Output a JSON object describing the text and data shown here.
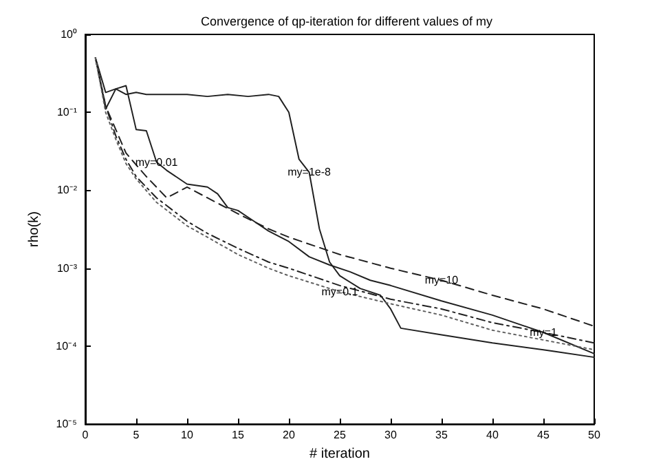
{
  "chart_data": {
    "type": "line",
    "title": "Convergence of qp-iteration for different values of my",
    "xlabel": "# iteration",
    "ylabel": "rho(k)",
    "log": "y",
    "grid": false,
    "marker": "none",
    "xlim": [
      0,
      50
    ],
    "xticks": [
      0,
      5,
      10,
      15,
      20,
      25,
      30,
      35,
      40,
      45,
      50
    ],
    "ylim": [
      1e-05,
      1
    ],
    "yticks": [
      {
        "value": 1e-05,
        "label": "10⁻⁵"
      },
      {
        "value": 0.0001,
        "label": "10⁻⁴"
      },
      {
        "value": 0.001,
        "label": "10⁻³"
      },
      {
        "value": 0.01,
        "label": "10⁻²"
      },
      {
        "value": 0.1,
        "label": "10⁻¹"
      },
      {
        "value": 1,
        "label": "10⁰"
      }
    ],
    "series": [
      {
        "color": "#202020",
        "line_style": "solid",
        "x": [
          1,
          2,
          3,
          4,
          5,
          6,
          8,
          10,
          12,
          14,
          16,
          18,
          19,
          20,
          21,
          22,
          23,
          24,
          25,
          27,
          29,
          30,
          31,
          35,
          40,
          45,
          50
        ],
        "values": [
          0.5,
          0.18,
          0.2,
          0.17,
          0.18,
          0.17,
          0.17,
          0.17,
          0.16,
          0.17,
          0.16,
          0.17,
          0.16,
          0.1,
          0.025,
          0.017,
          0.0032,
          0.0012,
          0.0008,
          0.00055,
          0.00045,
          0.0003,
          0.00017,
          0.00014,
          0.00011,
          9e-05,
          7.2e-05
        ]
      },
      {
        "color": "#202020",
        "line_style": "solid",
        "x": [
          1,
          2,
          3,
          4,
          5,
          6,
          7,
          8,
          10,
          12,
          13,
          14,
          15,
          16,
          18,
          20,
          22,
          24,
          26,
          28,
          30,
          35,
          40,
          45,
          50
        ],
        "values": [
          0.5,
          0.11,
          0.2,
          0.22,
          0.06,
          0.058,
          0.023,
          0.018,
          0.012,
          0.011,
          0.009,
          0.006,
          0.0055,
          0.0045,
          0.003,
          0.0022,
          0.0014,
          0.0011,
          0.0009,
          0.0007,
          0.0006,
          0.00038,
          0.00025,
          0.00015,
          8e-05
        ]
      },
      {
        "color": "#202020",
        "line_style": "dashed",
        "x": [
          1,
          2,
          3,
          4,
          6,
          8,
          10,
          12,
          15,
          18,
          20,
          25,
          30,
          35,
          40,
          45,
          50
        ],
        "values": [
          0.5,
          0.12,
          0.06,
          0.03,
          0.015,
          0.008,
          0.011,
          0.008,
          0.005,
          0.0032,
          0.0025,
          0.0015,
          0.001,
          0.0007,
          0.00045,
          0.0003,
          0.00018
        ]
      },
      {
        "color": "#202020",
        "line_style": "dashdot",
        "x": [
          1,
          2,
          3,
          4,
          5,
          7,
          10,
          12,
          15,
          18,
          20,
          25,
          30,
          35,
          40,
          45,
          50
        ],
        "values": [
          0.5,
          0.12,
          0.05,
          0.025,
          0.015,
          0.008,
          0.004,
          0.0028,
          0.0018,
          0.0012,
          0.001,
          0.0006,
          0.0004,
          0.0003,
          0.0002,
          0.00015,
          0.00011
        ]
      },
      {
        "color": "#606060",
        "line_style": "dotted",
        "x": [
          1,
          2,
          3,
          4,
          5,
          7,
          10,
          12,
          15,
          18,
          20,
          25,
          30,
          35,
          40,
          45,
          50
        ],
        "values": [
          0.5,
          0.1,
          0.045,
          0.022,
          0.014,
          0.007,
          0.0035,
          0.0025,
          0.0015,
          0.001,
          0.0008,
          0.0005,
          0.00035,
          0.00025,
          0.00016,
          0.00012,
          9e-05
        ]
      }
    ],
    "annotations": [
      {
        "text": "my=1e-8",
        "x": 22,
        "y": 0.017
      },
      {
        "text": "my=0.01",
        "x": 7,
        "y": 0.023
      },
      {
        "text": "my=10",
        "x": 35,
        "y": 0.0007
      },
      {
        "text": "my=1",
        "x": 45,
        "y": 0.00015
      },
      {
        "text": "my=0.1",
        "x": 25,
        "y": 0.0005
      }
    ]
  }
}
